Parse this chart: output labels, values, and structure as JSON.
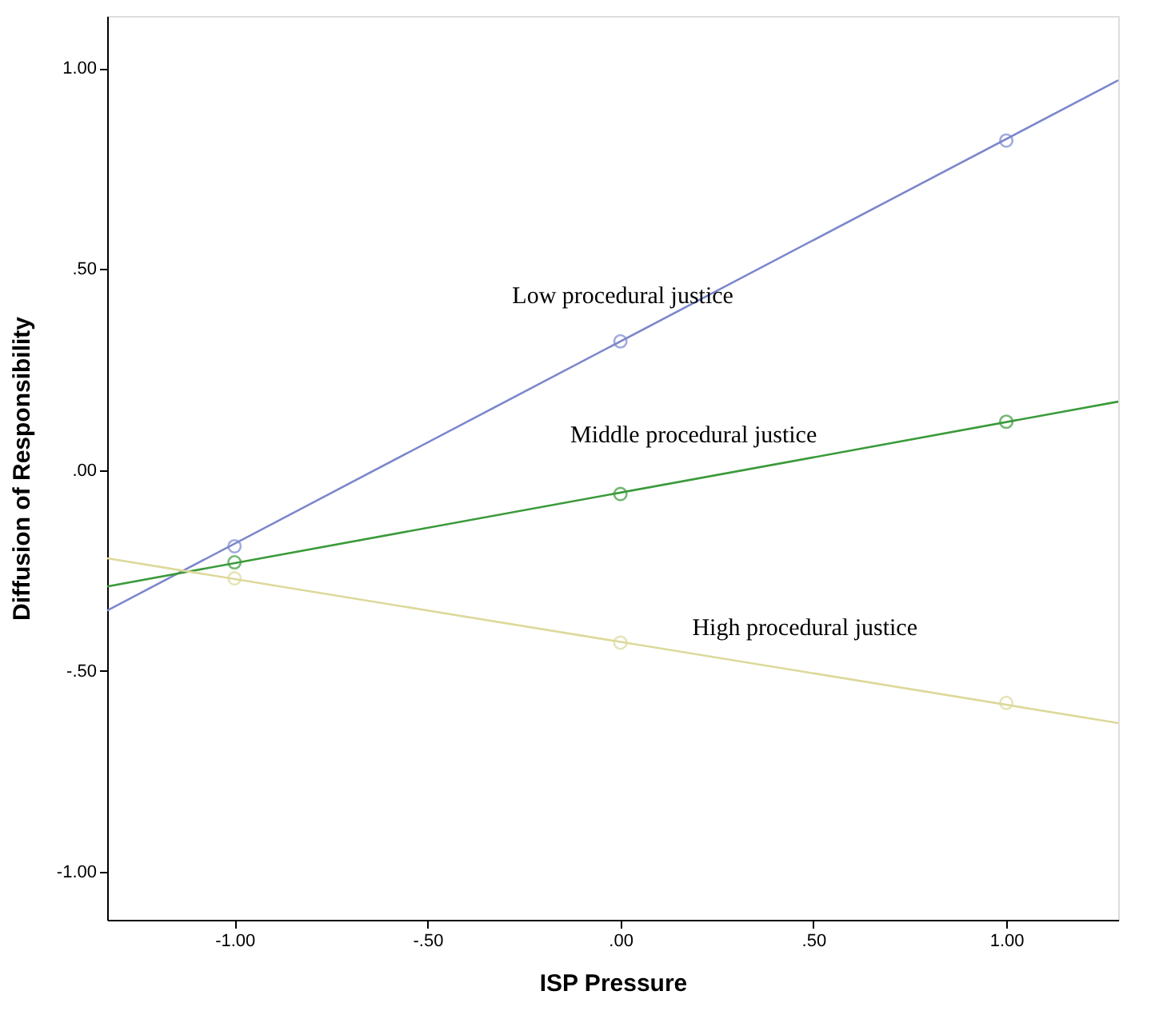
{
  "chart_data": {
    "type": "line",
    "xlabel": "ISP Pressure",
    "ylabel": "Diffusion of Responsibility",
    "xlim": [
      -1.33,
      1.29
    ],
    "ylim": [
      -1.12,
      1.13
    ],
    "xticks": [
      {
        "value": -1,
        "label": "-1.00"
      },
      {
        "value": -0.5,
        "label": "-.50"
      },
      {
        "value": 0,
        "label": ".00"
      },
      {
        "value": 0.5,
        "label": ".50"
      },
      {
        "value": 1,
        "label": "1.00"
      }
    ],
    "yticks": [
      {
        "value": -1,
        "label": "-1.00"
      },
      {
        "value": -0.5,
        "label": "-.50"
      },
      {
        "value": 0,
        "label": ".00"
      },
      {
        "value": 0.5,
        "label": ".50"
      },
      {
        "value": 1,
        "label": "1.00"
      }
    ],
    "grid": false,
    "legend": false,
    "series": [
      {
        "name": "Low procedural justice",
        "color": "#7b87cc",
        "marker": "none",
        "line_style": "solid",
        "x": [
          -1.33,
          1.29
        ],
        "values": [
          -0.35,
          0.97
        ]
      },
      {
        "name": "Middle procedural justice",
        "color": "#3a9a3a",
        "marker": "none",
        "line_style": "solid",
        "x": [
          -1.33,
          1.29
        ],
        "values": [
          -0.29,
          0.17
        ]
      },
      {
        "name": "High procedural justice",
        "color": "#dcd99a",
        "marker": "none",
        "line_style": "solid",
        "x": [
          -1.33,
          1.29
        ],
        "values": [
          -0.22,
          -0.63
        ]
      },
      {
        "type": "scatter",
        "color": "#7b87cc",
        "marker": "circle",
        "x": [
          -1,
          0,
          1
        ],
        "values": [
          -0.19,
          0.32,
          0.82
        ]
      },
      {
        "type": "scatter",
        "color": "#3a9a3a",
        "marker": "circle",
        "x": [
          -1,
          0,
          1
        ],
        "values": [
          -0.23,
          -0.06,
          0.12
        ]
      },
      {
        "type": "scatter",
        "color": "#dcd99a",
        "marker": "circle",
        "x": [
          -1,
          0,
          1
        ],
        "values": [
          -0.27,
          -0.43,
          -0.58
        ]
      }
    ]
  }
}
